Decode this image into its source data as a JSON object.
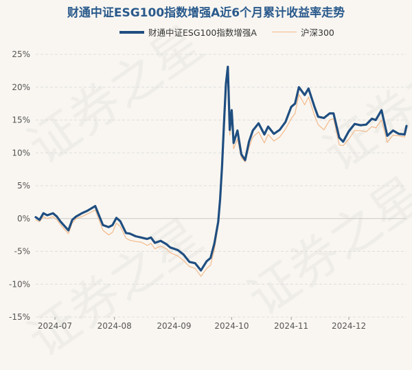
{
  "watermark_text": "证券之星",
  "chart_data": {
    "type": "line",
    "title": "财通中证ESG100指数增强A近6个月累计收益率走势",
    "xlabel": "",
    "ylabel": "",
    "xlim": [
      "2024-06-21",
      "2024-12-31"
    ],
    "ylim": [
      -15,
      25
    ],
    "grid": true,
    "legend_position": "top",
    "x_ticks": [
      "2024-07",
      "2024-08",
      "2024-09",
      "2024-10",
      "2024-11",
      "2024-12"
    ],
    "y_ticks": [
      "25%",
      "20%",
      "15%",
      "10%",
      "5%",
      "0%",
      "-5%",
      "-10%",
      "-15%"
    ],
    "colors": {
      "fund": "#1f4e80",
      "index": "#f2b98a",
      "grid": "#dddddd",
      "title": "#2a5a8c"
    },
    "series": [
      {
        "name": "财通中证ESG100指数增强A",
        "x": [
          "2024-06-21",
          "2024-06-23",
          "2024-06-25",
          "2024-06-27",
          "2024-06-30",
          "2024-07-02",
          "2024-07-04",
          "2024-07-08",
          "2024-07-10",
          "2024-07-12",
          "2024-07-15",
          "2024-07-18",
          "2024-07-22",
          "2024-07-26",
          "2024-07-29",
          "2024-07-31",
          "2024-08-02",
          "2024-08-04",
          "2024-08-07",
          "2024-08-09",
          "2024-08-12",
          "2024-08-15",
          "2024-08-18",
          "2024-08-20",
          "2024-08-22",
          "2024-08-25",
          "2024-08-28",
          "2024-08-30",
          "2024-09-03",
          "2024-09-06",
          "2024-09-09",
          "2024-09-12",
          "2024-09-15",
          "2024-09-18",
          "2024-09-20",
          "2024-09-22",
          "2024-09-24",
          "2024-09-25",
          "2024-09-26",
          "2024-09-27",
          "2024-09-28",
          "2024-09-29",
          "2024-09-30",
          "2024-10-01",
          "2024-10-02",
          "2024-10-04",
          "2024-10-06",
          "2024-10-08",
          "2024-10-10",
          "2024-10-12",
          "2024-10-15",
          "2024-10-18",
          "2024-10-20",
          "2024-10-23",
          "2024-10-26",
          "2024-10-29",
          "2024-11-01",
          "2024-11-03",
          "2024-11-05",
          "2024-11-08",
          "2024-11-10",
          "2024-11-13",
          "2024-11-15",
          "2024-11-18",
          "2024-11-21",
          "2024-11-23",
          "2024-11-26",
          "2024-11-28",
          "2024-12-01",
          "2024-12-04",
          "2024-12-07",
          "2024-12-10",
          "2024-12-13",
          "2024-12-15",
          "2024-12-18",
          "2024-12-21",
          "2024-12-24",
          "2024-12-27",
          "2024-12-30",
          "2024-12-31"
        ],
        "values": [
          0.2,
          -0.2,
          0.8,
          0.5,
          0.8,
          0.3,
          -0.5,
          -1.8,
          -0.2,
          0.3,
          0.8,
          1.2,
          1.9,
          -1.0,
          -1.3,
          -1.0,
          0.1,
          -0.4,
          -2.2,
          -2.3,
          -2.7,
          -2.9,
          -3.1,
          -2.9,
          -3.7,
          -3.4,
          -3.9,
          -4.4,
          -4.8,
          -5.5,
          -6.6,
          -6.8,
          -7.9,
          -6.5,
          -6.0,
          -3.8,
          -0.5,
          3.0,
          8.0,
          14.5,
          20.5,
          23.1,
          13.5,
          16.5,
          11.5,
          13.4,
          9.8,
          8.9,
          11.7,
          13.4,
          14.5,
          12.8,
          14.0,
          12.9,
          13.5,
          14.7,
          17.0,
          17.5,
          20.0,
          18.8,
          19.8,
          17.1,
          15.5,
          15.3,
          16.0,
          16.0,
          12.3,
          11.7,
          13.3,
          14.4,
          14.2,
          14.3,
          15.2,
          15.0,
          16.5,
          12.6,
          13.4,
          12.9,
          12.8,
          14.1
        ]
      },
      {
        "name": "沪深300",
        "x": [
          "2024-06-21",
          "2024-06-23",
          "2024-06-25",
          "2024-06-27",
          "2024-06-30",
          "2024-07-02",
          "2024-07-04",
          "2024-07-08",
          "2024-07-10",
          "2024-07-12",
          "2024-07-15",
          "2024-07-18",
          "2024-07-22",
          "2024-07-26",
          "2024-07-29",
          "2024-07-31",
          "2024-08-02",
          "2024-08-04",
          "2024-08-07",
          "2024-08-09",
          "2024-08-12",
          "2024-08-15",
          "2024-08-18",
          "2024-08-20",
          "2024-08-22",
          "2024-08-25",
          "2024-08-28",
          "2024-08-30",
          "2024-09-03",
          "2024-09-06",
          "2024-09-09",
          "2024-09-12",
          "2024-09-15",
          "2024-09-18",
          "2024-09-20",
          "2024-09-22",
          "2024-09-24",
          "2024-09-25",
          "2024-09-26",
          "2024-09-27",
          "2024-09-28",
          "2024-09-29",
          "2024-09-30",
          "2024-10-01",
          "2024-10-02",
          "2024-10-04",
          "2024-10-06",
          "2024-10-08",
          "2024-10-10",
          "2024-10-12",
          "2024-10-15",
          "2024-10-18",
          "2024-10-20",
          "2024-10-23",
          "2024-10-26",
          "2024-10-29",
          "2024-11-01",
          "2024-11-03",
          "2024-11-05",
          "2024-11-08",
          "2024-11-10",
          "2024-11-13",
          "2024-11-15",
          "2024-11-18",
          "2024-11-21",
          "2024-11-23",
          "2024-11-26",
          "2024-11-28",
          "2024-12-01",
          "2024-12-04",
          "2024-12-07",
          "2024-12-10",
          "2024-12-13",
          "2024-12-15",
          "2024-12-18",
          "2024-12-21",
          "2024-12-24",
          "2024-12-27",
          "2024-12-30",
          "2024-12-31"
        ],
        "values": [
          -0.2,
          -0.5,
          0.3,
          0.0,
          0.3,
          -0.2,
          -1.0,
          -2.3,
          -0.7,
          0.0,
          0.3,
          0.7,
          1.3,
          -1.8,
          -2.5,
          -2.1,
          -0.7,
          -1.2,
          -3.0,
          -3.3,
          -3.5,
          -3.6,
          -4.1,
          -3.8,
          -4.6,
          -4.2,
          -4.6,
          -5.2,
          -5.7,
          -6.4,
          -7.3,
          -7.6,
          -8.8,
          -7.6,
          -7.1,
          -4.7,
          -1.1,
          2.5,
          7.2,
          13.6,
          19.5,
          22.3,
          12.7,
          15.6,
          10.6,
          12.1,
          9.3,
          8.6,
          10.8,
          12.4,
          13.2,
          11.5,
          12.8,
          11.8,
          12.4,
          13.6,
          15.2,
          16.0,
          18.9,
          17.3,
          18.5,
          15.8,
          14.3,
          13.5,
          15.0,
          15.2,
          11.2,
          11.1,
          12.1,
          13.4,
          13.4,
          13.2,
          14.0,
          13.8,
          15.0,
          11.6,
          12.7,
          12.6,
          12.4,
          13.5
        ]
      }
    ]
  }
}
